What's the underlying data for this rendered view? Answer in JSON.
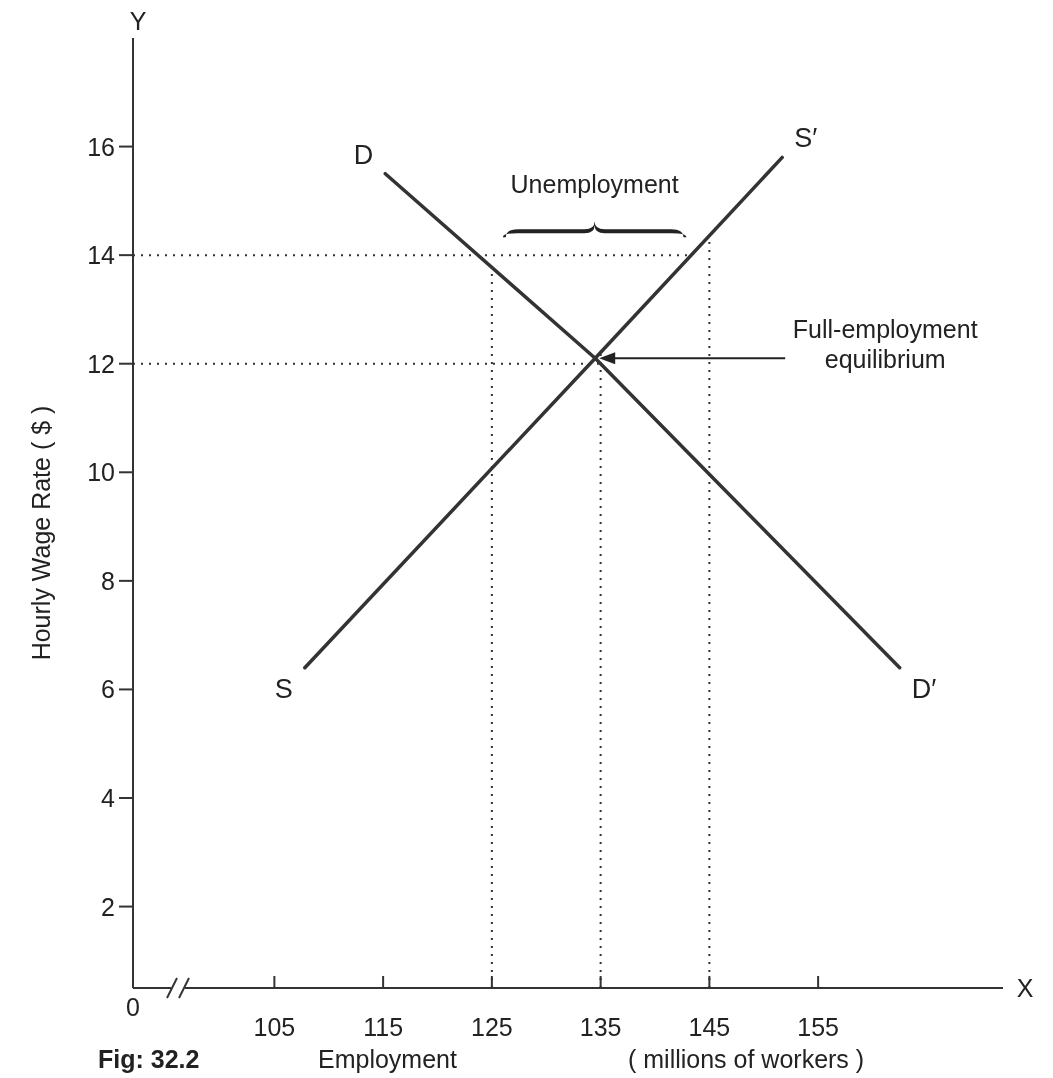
{
  "chart_data": {
    "type": "line",
    "xlabel": "Employment",
    "ylabel": "Hourly Wage Rate ( $ )",
    "xlim": [
      92,
      172
    ],
    "ylim": [
      0.5,
      18
    ],
    "xticks": [
      105,
      115,
      125,
      135,
      145,
      155
    ],
    "yticks": [
      2,
      4,
      6,
      8,
      10,
      12,
      14,
      16
    ],
    "grid": false,
    "marker": "none",
    "line_style": "solid",
    "series": [
      {
        "color": "#333333",
        "x": [
          115.2,
          134.5,
          162.5
        ],
        "values": [
          15.5,
          12.1,
          6.4
        ]
      },
      {
        "color": "#333333",
        "x": [
          107.8,
          134.5,
          151.7
        ],
        "values": [
          6.4,
          12.1,
          15.8
        ]
      }
    ],
    "ref_lines": [
      {
        "axis": "y",
        "value": 14,
        "line_style": "dotted",
        "color": "#333333"
      },
      {
        "axis": "y",
        "value": 12,
        "line_style": "dotted",
        "color": "#333333"
      },
      {
        "axis": "x",
        "value": 125,
        "line_style": "dotted",
        "color": "#333333"
      },
      {
        "axis": "x",
        "value": 135,
        "line_style": "dotted",
        "color": "#333333"
      },
      {
        "axis": "x",
        "value": 145,
        "line_style": "dotted",
        "color": "#333333"
      }
    ],
    "annotations": [
      {
        "text": "D",
        "x": 115.2,
        "y": 15.5
      },
      {
        "text": "D′",
        "x": 162.5,
        "y": 6.4
      },
      {
        "text": "S",
        "x": 107.8,
        "y": 6.4
      },
      {
        "text": "S′",
        "x": 151.7,
        "y": 15.8
      },
      "Unemployment",
      "Full-employment equilibrium",
      "0",
      "Y",
      "X",
      "Fig: 32.2",
      "( millions of workers )"
    ]
  }
}
